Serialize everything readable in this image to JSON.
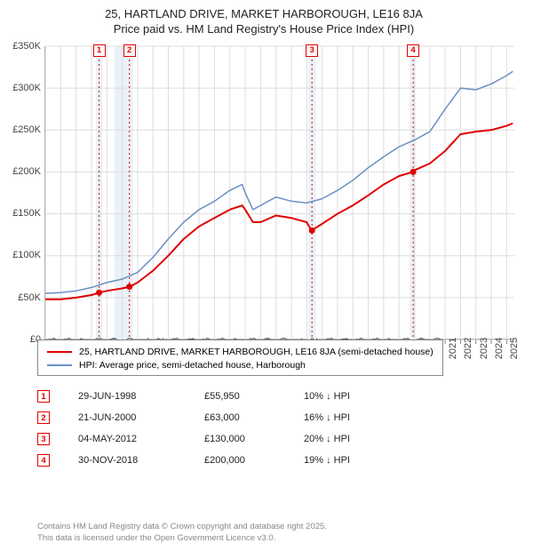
{
  "title": {
    "line1": "25, HARTLAND DRIVE, MARKET HARBOROUGH, LE16 8JA",
    "line2": "Price paid vs. HM Land Registry's House Price Index (HPI)"
  },
  "chart": {
    "type": "line",
    "background_color": "#ffffff",
    "grid_color": "#dddddd",
    "axis_color": "#888888",
    "shade_color": "#eaf1f8",
    "xlim": [
      1995,
      2025.5
    ],
    "ylim": [
      0,
      350000
    ],
    "ytick_step": 50000,
    "yticks": [
      "£0",
      "£50K",
      "£100K",
      "£150K",
      "£200K",
      "£250K",
      "£300K",
      "£350K"
    ],
    "xticks": [
      "1995",
      "1996",
      "1997",
      "1998",
      "1999",
      "2000",
      "2001",
      "2002",
      "2003",
      "2004",
      "2005",
      "2006",
      "2007",
      "2008",
      "2009",
      "2010",
      "2011",
      "2012",
      "2013",
      "2014",
      "2015",
      "2016",
      "2017",
      "2018",
      "2019",
      "2020",
      "2021",
      "2022",
      "2023",
      "2024",
      "2025"
    ],
    "series": [
      {
        "name": "property",
        "label": "25, HARTLAND DRIVE, MARKET HARBOROUGH, LE16 8JA (semi-detached house)",
        "color": "#e00000",
        "line_width": 2,
        "data": [
          [
            1995,
            48000
          ],
          [
            1996,
            48000
          ],
          [
            1997,
            50000
          ],
          [
            1998,
            53000
          ],
          [
            1998.5,
            55950
          ],
          [
            1999,
            58000
          ],
          [
            2000,
            61000
          ],
          [
            2000.5,
            63000
          ],
          [
            2001,
            68000
          ],
          [
            2002,
            82000
          ],
          [
            2003,
            100000
          ],
          [
            2004,
            120000
          ],
          [
            2005,
            135000
          ],
          [
            2006,
            145000
          ],
          [
            2007,
            155000
          ],
          [
            2007.8,
            160000
          ],
          [
            2008,
            155000
          ],
          [
            2008.5,
            140000
          ],
          [
            2009,
            140000
          ],
          [
            2010,
            148000
          ],
          [
            2011,
            145000
          ],
          [
            2012,
            140000
          ],
          [
            2012.3,
            130000
          ],
          [
            2013,
            138000
          ],
          [
            2014,
            150000
          ],
          [
            2015,
            160000
          ],
          [
            2016,
            172000
          ],
          [
            2017,
            185000
          ],
          [
            2018,
            195000
          ],
          [
            2018.9,
            200000
          ],
          [
            2019,
            202000
          ],
          [
            2020,
            210000
          ],
          [
            2021,
            225000
          ],
          [
            2022,
            245000
          ],
          [
            2023,
            248000
          ],
          [
            2024,
            250000
          ],
          [
            2025,
            255000
          ],
          [
            2025.4,
            258000
          ]
        ]
      },
      {
        "name": "hpi",
        "label": "HPI: Average price, semi-detached house, Harborough",
        "color": "#6a8fc4",
        "line_width": 1.5,
        "data": [
          [
            1995,
            55000
          ],
          [
            1996,
            56000
          ],
          [
            1997,
            58000
          ],
          [
            1998,
            62000
          ],
          [
            1999,
            68000
          ],
          [
            2000,
            72000
          ],
          [
            2001,
            80000
          ],
          [
            2002,
            98000
          ],
          [
            2003,
            120000
          ],
          [
            2004,
            140000
          ],
          [
            2005,
            155000
          ],
          [
            2006,
            165000
          ],
          [
            2007,
            178000
          ],
          [
            2007.8,
            185000
          ],
          [
            2008,
            175000
          ],
          [
            2008.5,
            155000
          ],
          [
            2009,
            160000
          ],
          [
            2010,
            170000
          ],
          [
            2011,
            165000
          ],
          [
            2012,
            163000
          ],
          [
            2013,
            168000
          ],
          [
            2014,
            178000
          ],
          [
            2015,
            190000
          ],
          [
            2016,
            205000
          ],
          [
            2017,
            218000
          ],
          [
            2018,
            230000
          ],
          [
            2019,
            238000
          ],
          [
            2020,
            248000
          ],
          [
            2021,
            275000
          ],
          [
            2022,
            300000
          ],
          [
            2023,
            298000
          ],
          [
            2024,
            305000
          ],
          [
            2025,
            315000
          ],
          [
            2025.4,
            320000
          ]
        ]
      }
    ],
    "sale_markers": [
      {
        "n": "1",
        "year": 1998.5,
        "price": 55950
      },
      {
        "n": "2",
        "year": 2000.47,
        "price": 63000
      },
      {
        "n": "3",
        "year": 2012.34,
        "price": 130000
      },
      {
        "n": "4",
        "year": 2018.92,
        "price": 200000
      }
    ],
    "shaded_years": [
      [
        1998.3,
        1998.7
      ],
      [
        1999.5,
        2000.7
      ],
      [
        2012.1,
        2012.6
      ],
      [
        2018.7,
        2019.1
      ]
    ]
  },
  "legend": {
    "items": [
      {
        "color": "#e00000",
        "label": "25, HARTLAND DRIVE, MARKET HARBOROUGH, LE16 8JA (semi-detached house)"
      },
      {
        "color": "#6a8fc4",
        "label": "HPI: Average price, semi-detached house, Harborough"
      }
    ]
  },
  "sales": [
    {
      "n": "1",
      "date": "29-JUN-1998",
      "price": "£55,950",
      "delta": "10% ↓ HPI"
    },
    {
      "n": "2",
      "date": "21-JUN-2000",
      "price": "£63,000",
      "delta": "16% ↓ HPI"
    },
    {
      "n": "3",
      "date": "04-MAY-2012",
      "price": "£130,000",
      "delta": "20% ↓ HPI"
    },
    {
      "n": "4",
      "date": "30-NOV-2018",
      "price": "£200,000",
      "delta": "19% ↓ HPI"
    }
  ],
  "license": {
    "line1": "Contains HM Land Registry data © Crown copyright and database right 2025.",
    "line2": "This data is licensed under the Open Government Licence v3.0."
  }
}
